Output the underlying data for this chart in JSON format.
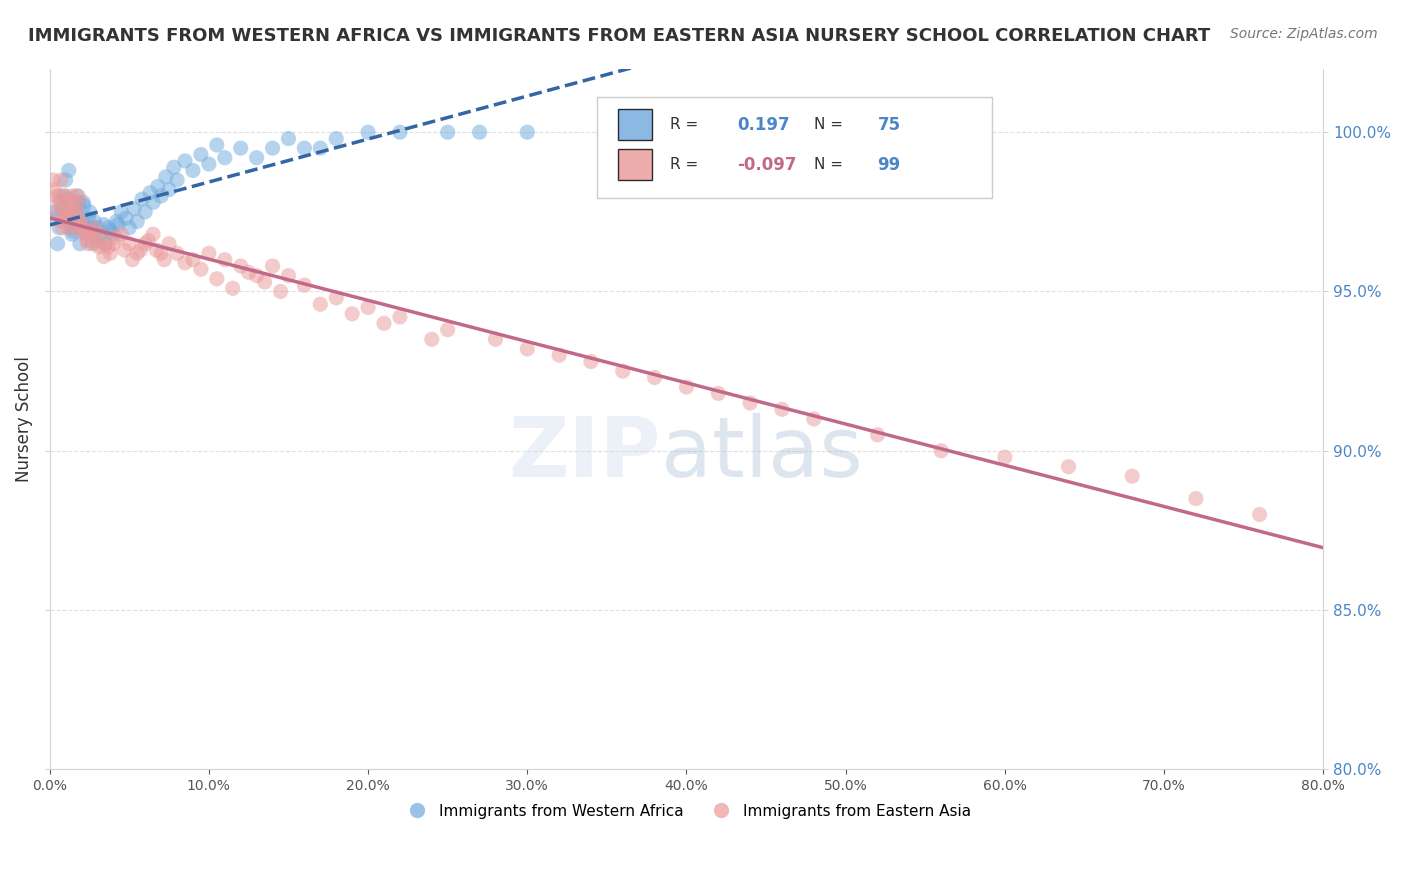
{
  "title": "IMMIGRANTS FROM WESTERN AFRICA VS IMMIGRANTS FROM EASTERN ASIA NURSERY SCHOOL CORRELATION CHART",
  "source": "Source: ZipAtlas.com",
  "xlim": [
    0.0,
    80.0
  ],
  "ylim": [
    80.0,
    102.0
  ],
  "ylabel": "Nursery School",
  "legend1_label": "Immigrants from Western Africa",
  "legend2_label": "Immigrants from Eastern Asia",
  "R_blue": 0.197,
  "N_blue": 75,
  "R_pink": -0.097,
  "N_pink": 99,
  "blue_color": "#6fa8dc",
  "pink_color": "#ea9999",
  "blue_line_color": "#3465a4",
  "pink_line_color": "#c2698a",
  "blue_scatter_x": [
    0.3,
    0.5,
    0.6,
    0.7,
    0.9,
    1.0,
    1.1,
    1.2,
    1.3,
    1.4,
    1.5,
    1.6,
    1.7,
    1.8,
    1.9,
    2.0,
    2.1,
    2.2,
    2.3,
    2.5,
    2.6,
    2.7,
    2.8,
    3.0,
    3.2,
    3.5,
    3.7,
    4.0,
    4.2,
    4.5,
    5.0,
    5.5,
    6.0,
    6.5,
    7.0,
    7.5,
    8.0,
    9.0,
    10.0,
    11.0,
    12.0,
    13.0,
    14.0,
    15.0,
    16.0,
    17.0,
    18.0,
    20.0,
    22.0,
    25.0,
    27.0,
    30.0,
    0.4,
    0.8,
    1.15,
    1.45,
    1.65,
    1.85,
    2.15,
    2.45,
    2.75,
    3.1,
    3.4,
    3.8,
    4.3,
    4.8,
    5.3,
    5.8,
    6.3,
    6.8,
    7.3,
    7.8,
    8.5,
    9.5,
    10.5
  ],
  "blue_scatter_y": [
    97.5,
    96.5,
    97.0,
    97.8,
    98.0,
    98.5,
    97.2,
    98.8,
    97.5,
    96.8,
    97.0,
    97.5,
    98.0,
    97.8,
    96.5,
    97.2,
    97.8,
    97.0,
    96.8,
    97.5,
    97.0,
    96.5,
    97.2,
    97.0,
    96.8,
    96.5,
    97.0,
    96.8,
    97.2,
    97.5,
    97.0,
    97.2,
    97.5,
    97.8,
    98.0,
    98.2,
    98.5,
    98.8,
    99.0,
    99.2,
    99.5,
    99.2,
    99.5,
    99.8,
    99.5,
    99.5,
    99.8,
    100.0,
    100.0,
    100.0,
    100.0,
    100.0,
    97.3,
    97.6,
    97.9,
    96.9,
    97.4,
    97.1,
    97.7,
    97.3,
    97.0,
    96.7,
    97.1,
    96.9,
    97.1,
    97.3,
    97.6,
    97.9,
    98.1,
    98.3,
    98.6,
    98.9,
    99.1,
    99.3,
    99.6
  ],
  "pink_scatter_x": [
    0.2,
    0.4,
    0.5,
    0.6,
    0.7,
    0.8,
    0.9,
    1.0,
    1.1,
    1.2,
    1.3,
    1.4,
    1.5,
    1.6,
    1.7,
    1.8,
    1.9,
    2.0,
    2.2,
    2.4,
    2.6,
    2.8,
    3.0,
    3.2,
    3.5,
    3.8,
    4.0,
    4.5,
    5.0,
    5.5,
    6.0,
    6.5,
    7.0,
    7.5,
    8.0,
    9.0,
    10.0,
    11.0,
    12.0,
    13.0,
    14.0,
    15.0,
    16.0,
    18.0,
    20.0,
    22.0,
    25.0,
    28.0,
    32.0,
    36.0,
    40.0,
    44.0,
    48.0,
    52.0,
    56.0,
    60.0,
    64.0,
    68.0,
    72.0,
    76.0,
    0.3,
    0.55,
    0.75,
    0.95,
    1.15,
    1.35,
    1.55,
    1.75,
    1.95,
    2.15,
    2.35,
    2.55,
    2.75,
    3.1,
    3.4,
    3.7,
    4.2,
    4.7,
    5.2,
    5.7,
    6.2,
    6.7,
    7.2,
    8.5,
    9.5,
    10.5,
    11.5,
    12.5,
    13.5,
    14.5,
    17.0,
    19.0,
    21.0,
    24.0,
    30.0,
    34.0,
    38.0,
    42.0,
    46.0
  ],
  "pink_scatter_y": [
    98.5,
    98.0,
    97.5,
    98.0,
    98.5,
    97.0,
    97.5,
    98.0,
    97.5,
    97.0,
    97.5,
    98.0,
    97.5,
    97.0,
    97.5,
    98.0,
    97.2,
    97.0,
    96.8,
    96.5,
    96.8,
    97.0,
    96.5,
    96.8,
    96.5,
    96.2,
    96.5,
    96.8,
    96.5,
    96.2,
    96.5,
    96.8,
    96.2,
    96.5,
    96.2,
    96.0,
    96.2,
    96.0,
    95.8,
    95.5,
    95.8,
    95.5,
    95.2,
    94.8,
    94.5,
    94.2,
    93.8,
    93.5,
    93.0,
    92.5,
    92.0,
    91.5,
    91.0,
    90.5,
    90.0,
    89.8,
    89.5,
    89.2,
    88.5,
    88.0,
    98.2,
    97.8,
    97.2,
    97.8,
    97.3,
    97.8,
    97.3,
    97.8,
    97.1,
    96.9,
    96.6,
    96.9,
    96.6,
    96.4,
    96.1,
    96.4,
    96.7,
    96.3,
    96.0,
    96.3,
    96.6,
    96.3,
    96.0,
    95.9,
    95.7,
    95.4,
    95.1,
    95.6,
    95.3,
    95.0,
    94.6,
    94.3,
    94.0,
    93.5,
    93.2,
    92.8,
    92.3,
    91.8,
    91.3
  ]
}
